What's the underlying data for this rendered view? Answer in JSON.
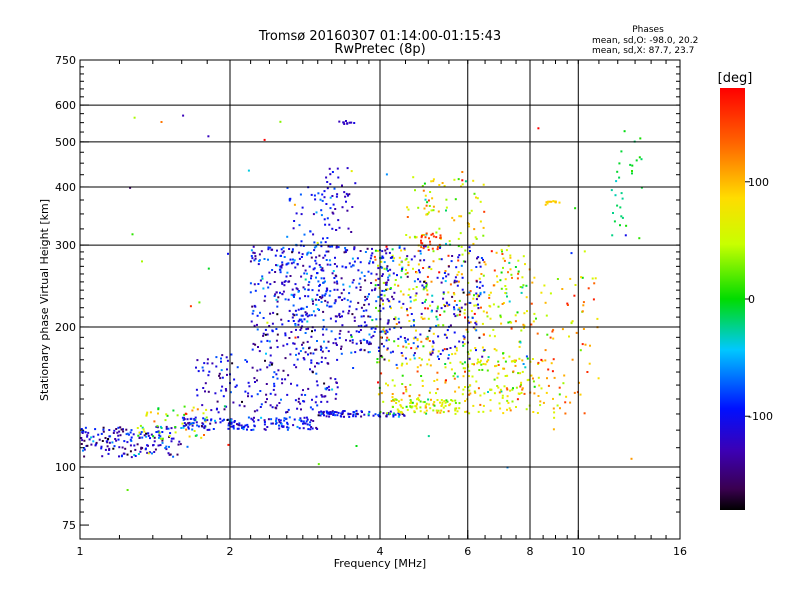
{
  "chart_data": {
    "type": "scatter",
    "title": "Tromsø 20160307 01:14:00-01:15:43",
    "subtitle": "RwPretec (8p)",
    "xlabel": "Frequency [MHz]",
    "ylabel": "Stationary phase Virtual Height [km]",
    "x_scale": "log",
    "y_scale": "log",
    "xlim": [
      1,
      16
    ],
    "ylim": [
      70,
      750
    ],
    "x_ticks": [
      1,
      2,
      4,
      6,
      8,
      10,
      16
    ],
    "x_tick_labels": [
      "1",
      "2",
      "4",
      "6",
      "8",
      "10",
      "16"
    ],
    "x_gridlines": [
      2,
      4,
      6,
      8,
      10
    ],
    "y_ticks": [
      75,
      100,
      200,
      300,
      400,
      500,
      600,
      750
    ],
    "y_tick_labels": [
      "75",
      "100",
      "200",
      "300",
      "400",
      "500",
      "600",
      "750"
    ],
    "y_gridlines": [
      100,
      200,
      300,
      400,
      500,
      600
    ],
    "grid": true,
    "stats": {
      "heading": "Phases",
      "line1": "mean, sd,O: -98.0, 20.2",
      "line2": "mean, sd,X:  87.7, 23.7"
    },
    "colorbar": {
      "label": "[deg]",
      "range": [
        -180,
        180
      ],
      "ticks": [
        100,
        0,
        -100
      ],
      "tick_labels": [
        "100",
        "0",
        "-100"
      ],
      "colormap": "rainbow"
    },
    "clusters": [
      {
        "x": [
          1.0,
          1.6
        ],
        "h": [
          105,
          122
        ],
        "n": 170,
        "phase": -110,
        "sd": 35
      },
      {
        "x": [
          1.3,
          1.8
        ],
        "h": [
          115,
          135
        ],
        "n": 50,
        "phase": 45,
        "sd": 35
      },
      {
        "x": [
          1.6,
          3.0
        ],
        "h": [
          120,
          128
        ],
        "n": 160,
        "phase": -100,
        "sd": 25
      },
      {
        "x": [
          1.7,
          3.3
        ],
        "h": [
          130,
          175
        ],
        "n": 180,
        "phase": -115,
        "sd": 25
      },
      {
        "x": [
          2.2,
          4.2
        ],
        "h": [
          175,
          300
        ],
        "n": 480,
        "phase": -110,
        "sd": 30
      },
      {
        "x": [
          2.6,
          3.2
        ],
        "h": [
          200,
          400
        ],
        "n": 90,
        "phase": -85,
        "sd": 25
      },
      {
        "x": [
          3.1,
          3.6
        ],
        "h": [
          320,
          440
        ],
        "n": 40,
        "phase": -115,
        "sd": 15
      },
      {
        "x": [
          3.3,
          3.6
        ],
        "h": [
          545,
          555
        ],
        "n": 10,
        "phase": -120,
        "sd": 10
      },
      {
        "x": [
          3.0,
          4.5
        ],
        "h": [
          128,
          132
        ],
        "n": 90,
        "phase": -110,
        "sd": 25
      },
      {
        "x": [
          4.0,
          6.0
        ],
        "h": [
          130,
          140
        ],
        "n": 100,
        "phase": 60,
        "sd": 35
      },
      {
        "x": [
          3.9,
          8.0
        ],
        "h": [
          140,
          300
        ],
        "n": 420,
        "phase": 70,
        "sd": 50
      },
      {
        "x": [
          4.0,
          6.5
        ],
        "h": [
          170,
          300
        ],
        "n": 200,
        "phase": -105,
        "sd": 30
      },
      {
        "x": [
          4.5,
          6.5
        ],
        "h": [
          300,
          420
        ],
        "n": 80,
        "phase": 70,
        "sd": 45
      },
      {
        "x": [
          4.8,
          5.3
        ],
        "h": [
          290,
          320
        ],
        "n": 25,
        "phase": 150,
        "sd": 12
      },
      {
        "x": [
          5.8,
          8.5
        ],
        "h": [
          130,
          170
        ],
        "n": 90,
        "phase": 75,
        "sd": 35
      },
      {
        "x": [
          8.6,
          9.2
        ],
        "h": [
          365,
          375
        ],
        "n": 12,
        "phase": 90,
        "sd": 10
      },
      {
        "x": [
          8.0,
          11.0
        ],
        "h": [
          120,
          260
        ],
        "n": 90,
        "phase": 95,
        "sd": 40
      },
      {
        "x": [
          11.5,
          13.5
        ],
        "h": [
          300,
          540
        ],
        "n": 30,
        "phase": -10,
        "sd": 15
      },
      {
        "x": [
          1.0,
          13.0
        ],
        "h": [
          85,
          600
        ],
        "n": 60,
        "phase": 0,
        "sd": 90
      }
    ]
  }
}
